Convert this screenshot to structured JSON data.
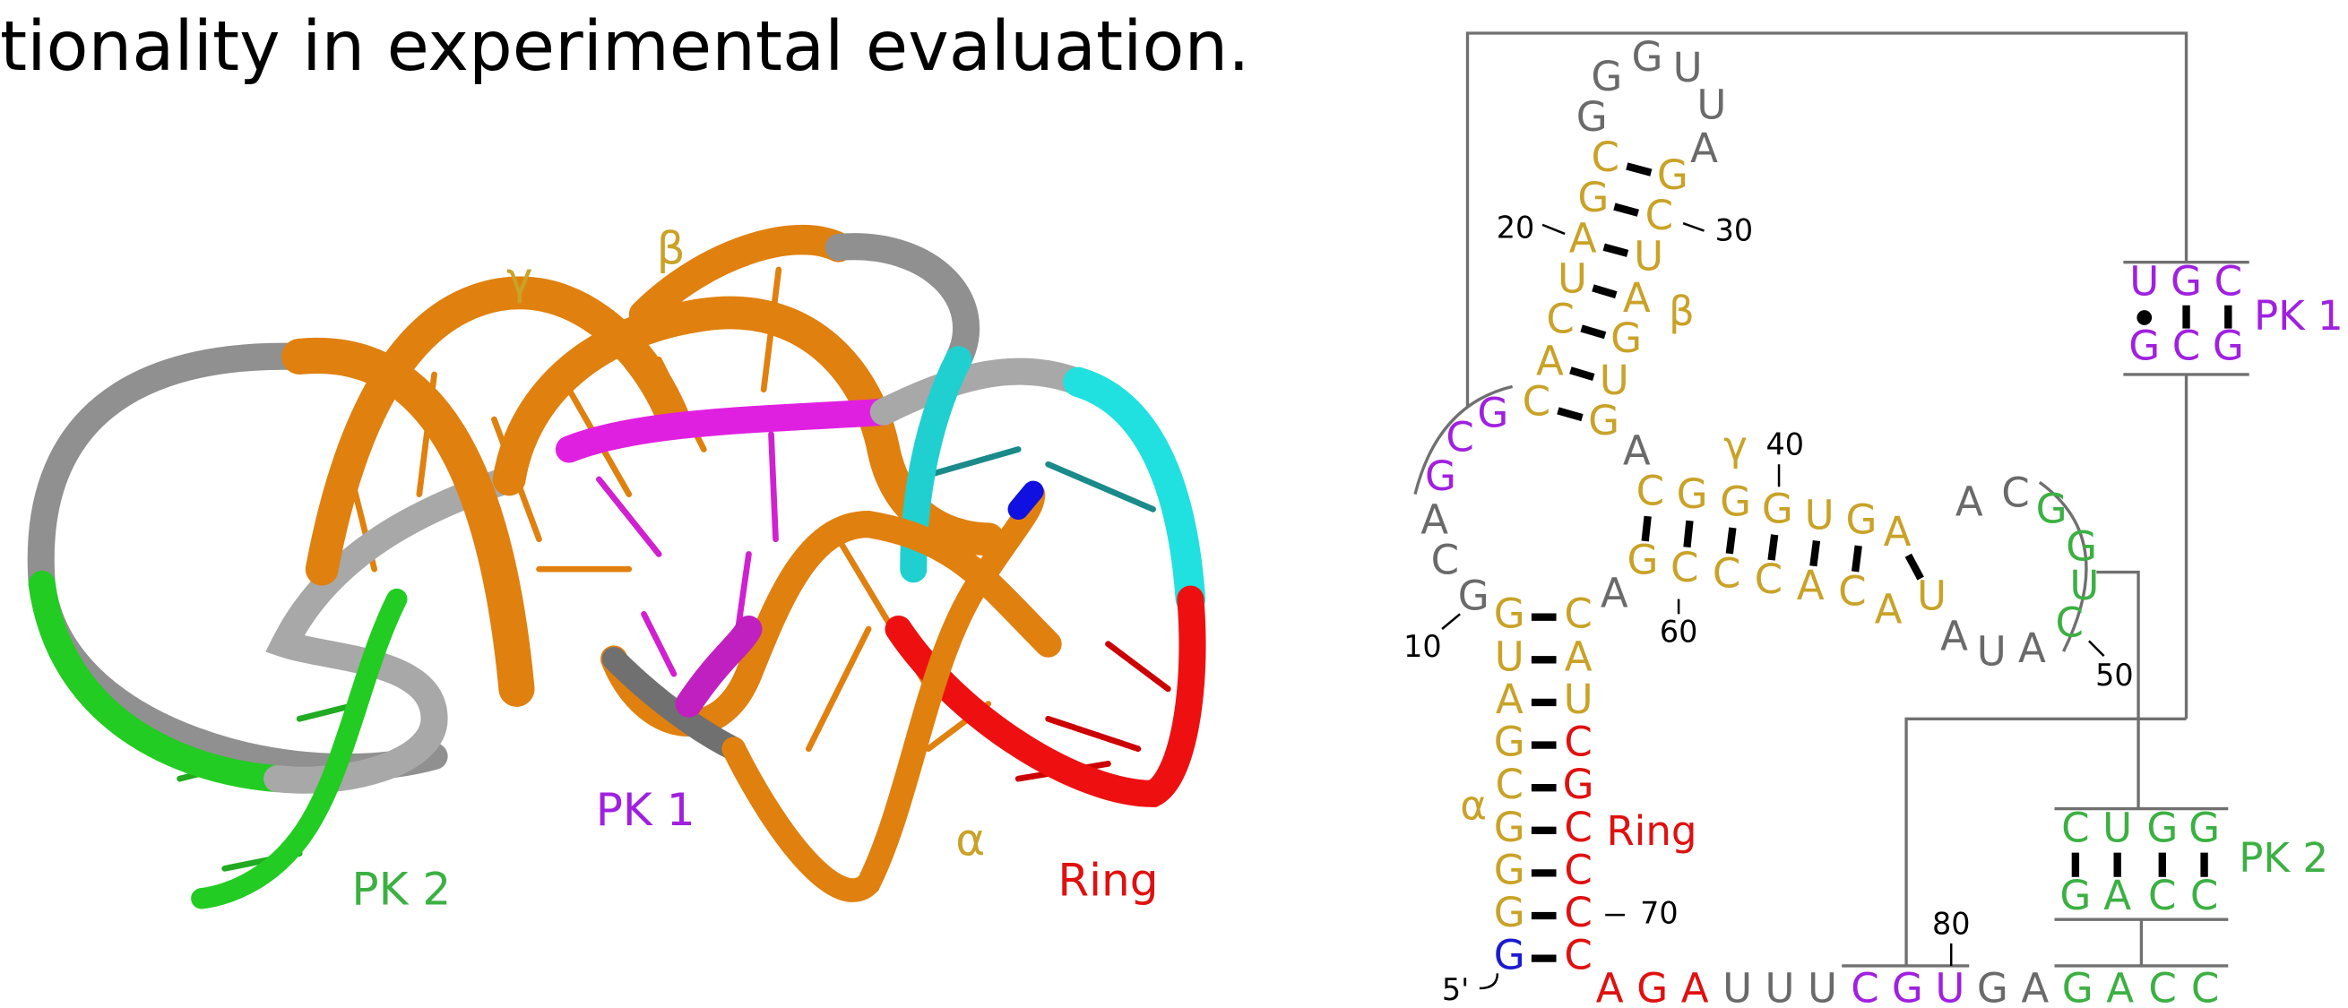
{
  "text": {
    "line": "tionality in experimental evaluation."
  },
  "figure_3d": {
    "labels": [
      "γ",
      "β",
      "PK 1",
      "PK 2",
      "α",
      "Ring"
    ]
  },
  "secondary_structure": {
    "nucleotides": [
      "G",
      "G",
      "U",
      "U",
      "G",
      "A",
      "C",
      "G",
      "A",
      "U",
      "C",
      "A",
      "C",
      "G",
      "C",
      "U",
      "A",
      "G",
      "U",
      "G",
      "G",
      "C",
      "G",
      "A",
      "C",
      "G",
      "A",
      "A",
      "C",
      "G",
      "G",
      "G",
      "U",
      "G",
      "A",
      "A",
      "C",
      "G",
      "C",
      "C",
      "C",
      "A",
      "C",
      "A",
      "U",
      "G",
      "G",
      "U",
      "C",
      "A",
      "U",
      "A",
      "G",
      "U",
      "A",
      "G",
      "C",
      "G",
      "G",
      "G",
      "G",
      "C",
      "A",
      "U",
      "C",
      "G",
      "C",
      "C",
      "C",
      "C",
      "A",
      "G",
      "A",
      "U",
      "U",
      "U",
      "C",
      "G",
      "U",
      "G",
      "A",
      "G",
      "A",
      "C",
      "C",
      "U",
      "G",
      "C",
      "G",
      "C",
      "G",
      "C",
      "U",
      "G",
      "G",
      "G",
      "A",
      "C",
      "C"
    ],
    "labels": [
      "20",
      "30",
      "β",
      "10",
      "γ",
      "40",
      "60",
      "50",
      "α",
      "Ring",
      "70",
      "5'",
      "80",
      "PK 1",
      "PK 2"
    ]
  }
}
